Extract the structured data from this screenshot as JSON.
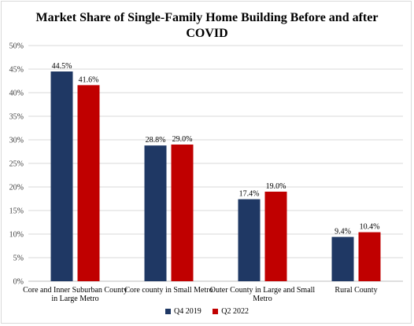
{
  "chart_data": {
    "type": "bar",
    "title_lines": [
      "Market Share of Single-Family Home Building Before and after",
      "COVID"
    ],
    "categories": [
      [
        "Core and Inner Suburban County",
        "in Large Metro"
      ],
      [
        "Core county in Small Metro"
      ],
      [
        "Outer County in Large and Small",
        "Metro"
      ],
      [
        "Rural County"
      ]
    ],
    "series": [
      {
        "name": "Q4 2019",
        "values": [
          44.5,
          28.8,
          17.4,
          9.4
        ],
        "labels": [
          "44.5%",
          "28.8%",
          "17.4%",
          "9.4%"
        ],
        "color": "#1f3864"
      },
      {
        "name": "Q2 2022",
        "values": [
          41.6,
          29.0,
          19.0,
          10.4
        ],
        "labels": [
          "41.6%",
          "29.0%",
          "19.0%",
          "10.4%"
        ],
        "color": "#c00000"
      }
    ],
    "ylim": [
      0,
      50
    ],
    "yticks": [
      0,
      5,
      10,
      15,
      20,
      25,
      30,
      35,
      40,
      45,
      50
    ],
    "ytick_labels": [
      "0%",
      "5%",
      "10%",
      "15%",
      "20%",
      "25%",
      "30%",
      "35%",
      "40%",
      "45%",
      "50%"
    ],
    "grid": true,
    "legend_position": "bottom"
  }
}
